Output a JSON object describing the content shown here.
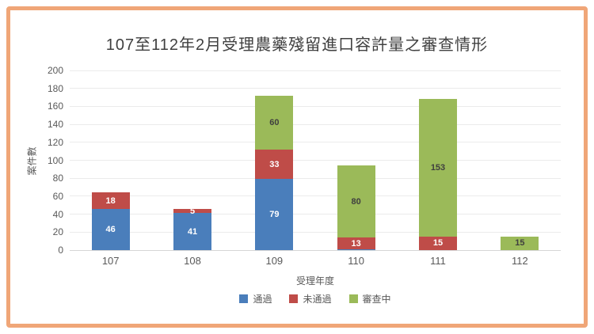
{
  "page": {
    "frame_color": "#f0a678",
    "background": "#ffffff"
  },
  "chart_data": {
    "type": "bar",
    "stacked": true,
    "title": "107至112年2月受理農藥殘留進口容許量之審查情形",
    "xlabel": "受理年度",
    "ylabel": "案件數",
    "ylim": [
      0,
      200
    ],
    "ytick_step": 20,
    "grid": true,
    "legend_position": "bottom",
    "categories": [
      "107",
      "108",
      "109",
      "110",
      "111",
      "112"
    ],
    "series": [
      {
        "key": "passed",
        "name": "通過",
        "color": "#4a7ebb",
        "label_color": "#ffffff",
        "values": [
          46,
          41,
          79,
          1,
          0,
          0
        ],
        "labels": [
          "46",
          "41",
          "79",
          "",
          "",
          ""
        ]
      },
      {
        "key": "not-passed",
        "name": "未通過",
        "color": "#bf4c48",
        "label_color": "#ffffff",
        "values": [
          18,
          5,
          33,
          13,
          15,
          0
        ],
        "labels": [
          "18",
          "5",
          "33",
          "13",
          "15",
          ""
        ]
      },
      {
        "key": "under-review",
        "name": "審查中",
        "color": "#9bba59",
        "label_color": "#3f3f3f",
        "values": [
          0,
          0,
          60,
          80,
          153,
          15
        ],
        "labels": [
          "",
          "",
          "60",
          "80",
          "153",
          "15"
        ]
      }
    ]
  }
}
